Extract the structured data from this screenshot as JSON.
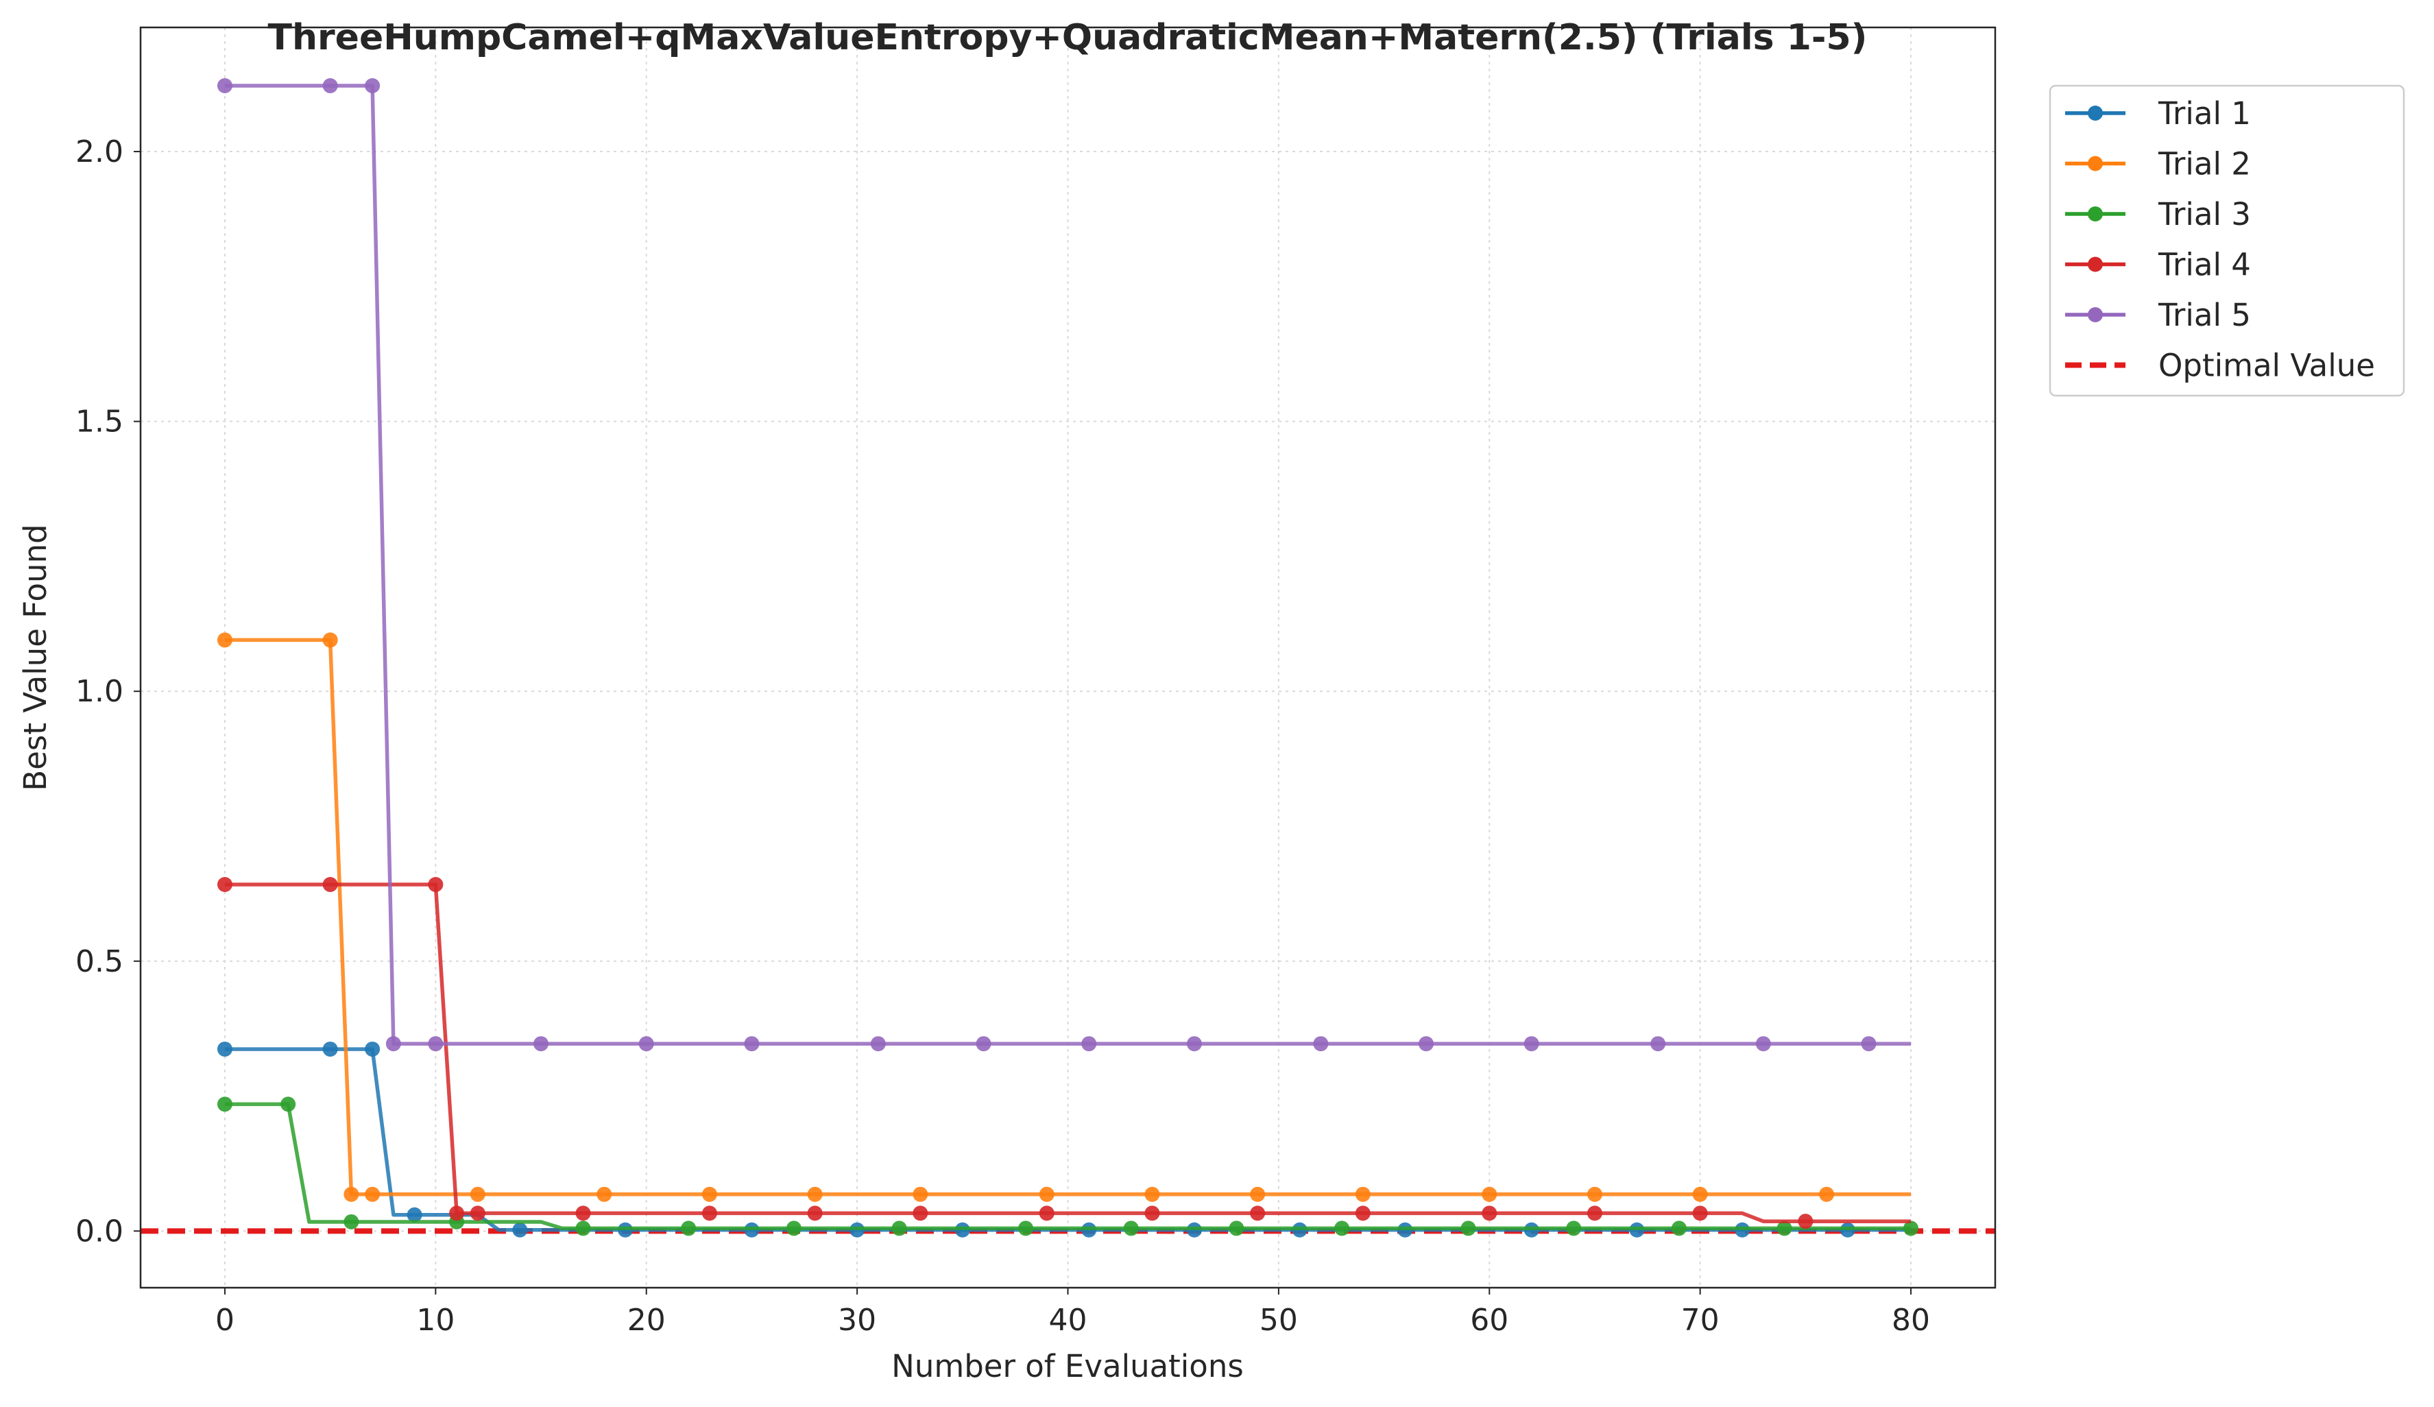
{
  "chart_data": {
    "type": "line",
    "title": "ThreeHumpCamel+qMaxValueEntropy+QuadraticMean+Matern(2.5) (Trials 1-5)",
    "xlabel": "Number of Evaluations",
    "ylabel": "Best Value Found",
    "xlim": [
      -4,
      84
    ],
    "ylim": [
      -0.105,
      2.23
    ],
    "xticks": [
      0,
      10,
      20,
      30,
      40,
      50,
      60,
      70,
      80
    ],
    "yticks": [
      0.0,
      0.5,
      1.0,
      1.5,
      2.0
    ],
    "xtick_labels": [
      "0",
      "10",
      "20",
      "30",
      "40",
      "50",
      "60",
      "70",
      "80"
    ],
    "ytick_labels": [
      "0.0",
      "0.5",
      "1.0",
      "1.5",
      "2.0"
    ],
    "grid": true,
    "legend_position": "outside-top-right",
    "optimal_value": {
      "name": "Optimal Value",
      "value": 0.0,
      "color": "#e31a1c",
      "style": "dashed"
    },
    "series": [
      {
        "name": "Trial 1",
        "color": "#1f77b4",
        "steps": [
          [
            0,
            0.337
          ],
          [
            7,
            0.337
          ],
          [
            8,
            0.03
          ],
          [
            12,
            0.03
          ],
          [
            13,
            0.002
          ],
          [
            80,
            0.002
          ]
        ],
        "markers": [
          0,
          5,
          7,
          9,
          14,
          19,
          25,
          30,
          35,
          41,
          46,
          51,
          56,
          62,
          67,
          72,
          77
        ]
      },
      {
        "name": "Trial 2",
        "color": "#ff7f0e",
        "steps": [
          [
            0,
            1.095
          ],
          [
            5,
            1.095
          ],
          [
            6,
            0.068
          ],
          [
            80,
            0.068
          ]
        ],
        "markers": [
          0,
          5,
          6,
          7,
          12,
          18,
          23,
          28,
          33,
          39,
          44,
          49,
          54,
          60,
          65,
          70,
          76
        ]
      },
      {
        "name": "Trial 3",
        "color": "#2ca02c",
        "steps": [
          [
            0,
            0.235
          ],
          [
            3,
            0.235
          ],
          [
            4,
            0.017
          ],
          [
            15,
            0.017
          ],
          [
            16,
            0.005
          ],
          [
            80,
            0.005
          ]
        ],
        "markers": [
          0,
          3,
          6,
          11,
          17,
          22,
          27,
          32,
          38,
          43,
          48,
          53,
          59,
          64,
          69,
          74,
          80
        ]
      },
      {
        "name": "Trial 4",
        "color": "#d62728",
        "steps": [
          [
            0,
            0.642
          ],
          [
            10,
            0.642
          ],
          [
            11,
            0.033
          ],
          [
            72,
            0.033
          ],
          [
            73,
            0.018
          ],
          [
            80,
            0.018
          ]
        ],
        "markers": [
          0,
          5,
          10,
          11,
          12,
          17,
          23,
          28,
          33,
          39,
          44,
          49,
          54,
          60,
          65,
          70,
          75
        ]
      },
      {
        "name": "Trial 5",
        "color": "#9467bd",
        "steps": [
          [
            0,
            2.122
          ],
          [
            7,
            2.122
          ],
          [
            8,
            0.347
          ],
          [
            80,
            0.347
          ]
        ],
        "markers": [
          0,
          5,
          7,
          8,
          10,
          15,
          20,
          25,
          31,
          36,
          41,
          46,
          52,
          57,
          62,
          68,
          73,
          78
        ]
      }
    ]
  }
}
